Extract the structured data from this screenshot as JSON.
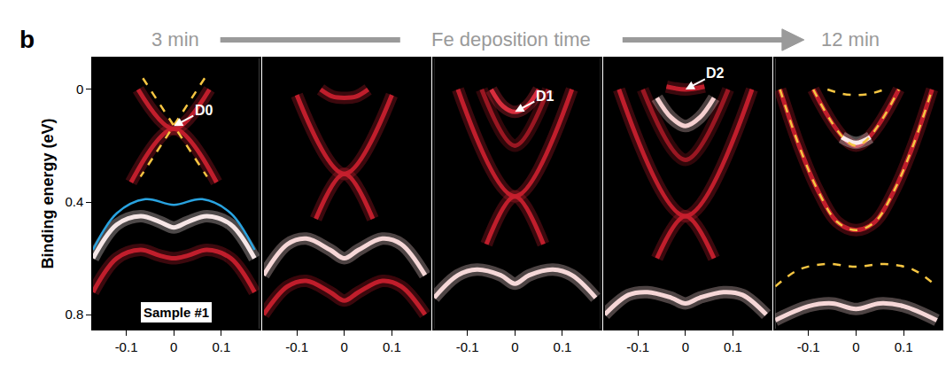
{
  "chart_data": {
    "type": "line",
    "label": "b",
    "header": {
      "left": "3 min",
      "center": "Fe deposition time",
      "right": "12 min"
    },
    "ylabel": "Binding energy (eV)",
    "color": "#000000",
    "xlim": [
      -0.17,
      0.18
    ],
    "ylim": [
      0.85,
      -0.11
    ],
    "xticks": [
      -0.1,
      0,
      0.1
    ],
    "yticks": [
      0,
      0.4,
      0.8
    ],
    "panels": [
      {
        "note": "Sample #1",
        "annotations": [
          {
            "text": "D0",
            "x": 0,
            "y": 0.13
          }
        ],
        "series": [
          {
            "type": "band",
            "color": "#c8202e",
            "line_style": "solid",
            "x": [
              -0.075,
              0,
              0.075
            ],
            "values": [
              0,
              0.14,
              0
            ]
          },
          {
            "type": "band",
            "color": "#c8202e",
            "line_style": "solid",
            "x": [
              -0.09,
              0,
              0.09
            ],
            "values": [
              0.33,
              0.14,
              0.33
            ]
          },
          {
            "type": "band",
            "color": "#c8202e",
            "line_style": "solid",
            "x": [
              -0.17,
              -0.12,
              -0.07,
              -0.03,
              0,
              0.03,
              0.07,
              0.12,
              0.17
            ],
            "values": [
              0.72,
              0.6,
              0.57,
              0.59,
              0.6,
              0.59,
              0.57,
              0.6,
              0.72
            ]
          },
          {
            "type": "band",
            "color": "#fff0f0",
            "line_style": "solid",
            "x": [
              -0.17,
              -0.12,
              -0.07,
              -0.03,
              0,
              0.03,
              0.07,
              0.12,
              0.17
            ],
            "values": [
              0.6,
              0.48,
              0.45,
              0.47,
              0.49,
              0.47,
              0.45,
              0.48,
              0.6
            ]
          },
          {
            "type": "line",
            "color": "#29a3e0",
            "line_style": "solid",
            "x": [
              -0.17,
              -0.12,
              -0.06,
              0,
              0.06,
              0.12,
              0.17
            ],
            "values": [
              0.57,
              0.44,
              0.39,
              0.41,
              0.39,
              0.44,
              0.57
            ]
          },
          {
            "type": "line",
            "color": "#f5c542",
            "line_style": "dash",
            "x": [
              -0.065,
              0.07
            ],
            "values": [
              -0.04,
              0.31
            ]
          },
          {
            "type": "line",
            "color": "#f5c542",
            "line_style": "dash",
            "x": [
              0.065,
              -0.07
            ],
            "values": [
              -0.04,
              0.31
            ]
          }
        ]
      },
      {
        "annotations": [],
        "series": [
          {
            "type": "band",
            "color": "#c8202e",
            "line_style": "solid",
            "x": [
              -0.1,
              0,
              0.1
            ],
            "values": [
              0.02,
              0.3,
              0.02
            ]
          },
          {
            "type": "band",
            "color": "#c8202e",
            "line_style": "solid",
            "x": [
              -0.06,
              0,
              0.06
            ],
            "values": [
              0.46,
              0.3,
              0.46
            ]
          },
          {
            "type": "band",
            "color": "#c8202e",
            "line_style": "solid",
            "x": [
              -0.05,
              -0.025,
              0,
              0.025,
              0.05
            ],
            "values": [
              0,
              0.025,
              0.03,
              0.025,
              0
            ]
          },
          {
            "type": "band",
            "color": "#c8202e",
            "line_style": "solid",
            "x": [
              -0.17,
              -0.12,
              -0.08,
              -0.03,
              0,
              0.03,
              0.08,
              0.12,
              0.17
            ],
            "values": [
              0.8,
              0.7,
              0.68,
              0.72,
              0.75,
              0.72,
              0.68,
              0.7,
              0.8
            ]
          },
          {
            "type": "band",
            "color": "#ffe0e0",
            "line_style": "solid",
            "x": [
              -0.17,
              -0.12,
              -0.08,
              -0.03,
              0,
              0.03,
              0.08,
              0.12,
              0.17
            ],
            "values": [
              0.66,
              0.55,
              0.53,
              0.57,
              0.6,
              0.57,
              0.53,
              0.55,
              0.66
            ]
          }
        ]
      },
      {
        "annotations": [
          {
            "text": "D1",
            "x": 0,
            "y": 0.08
          }
        ],
        "series": [
          {
            "type": "band",
            "color": "#c8202e",
            "line_style": "solid",
            "x": [
              -0.12,
              0,
              0.12
            ],
            "values": [
              0,
              0.38,
              0
            ]
          },
          {
            "type": "band",
            "color": "#c8202e",
            "line_style": "solid",
            "x": [
              -0.06,
              0,
              0.06
            ],
            "values": [
              0.55,
              0.38,
              0.55
            ]
          },
          {
            "type": "band",
            "color": "#a01824",
            "line_style": "solid",
            "x": [
              -0.07,
              0,
              0.07
            ],
            "values": [
              0,
              0.2,
              0
            ]
          },
          {
            "type": "band",
            "color": "#e03040",
            "line_style": "solid",
            "x": [
              -0.05,
              -0.025,
              0,
              0.025,
              0.05
            ],
            "values": [
              0,
              0.06,
              0.08,
              0.06,
              0
            ]
          },
          {
            "type": "band",
            "color": "#ffe0e0",
            "line_style": "solid",
            "x": [
              -0.17,
              -0.12,
              -0.08,
              -0.03,
              0,
              0.03,
              0.08,
              0.12,
              0.17
            ],
            "values": [
              0.74,
              0.66,
              0.64,
              0.66,
              0.69,
              0.66,
              0.64,
              0.66,
              0.74
            ]
          }
        ]
      },
      {
        "annotations": [
          {
            "text": "D2",
            "x": 0,
            "y": 0
          }
        ],
        "series": [
          {
            "type": "band",
            "color": "#c8202e",
            "line_style": "solid",
            "x": [
              -0.14,
              0,
              0.14
            ],
            "values": [
              0,
              0.45,
              0
            ]
          },
          {
            "type": "band",
            "color": "#c8202e",
            "line_style": "solid",
            "x": [
              -0.06,
              0,
              0.06
            ],
            "values": [
              0.6,
              0.45,
              0.6
            ]
          },
          {
            "type": "band",
            "color": "#a01824",
            "line_style": "solid",
            "x": [
              -0.09,
              0,
              0.09
            ],
            "values": [
              0,
              0.25,
              0
            ]
          },
          {
            "type": "band",
            "color": "#c8202e",
            "line_style": "solid",
            "x": [
              -0.04,
              0,
              0.04
            ],
            "values": [
              -0.01,
              0,
              -0.01
            ]
          },
          {
            "type": "band",
            "color": "#ffd8d8",
            "line_style": "solid",
            "x": [
              -0.06,
              -0.03,
              0,
              0.03,
              0.06
            ],
            "values": [
              0.03,
              0.1,
              0.13,
              0.1,
              0.03
            ]
          },
          {
            "type": "band",
            "color": "#ffe0e0",
            "line_style": "solid",
            "x": [
              -0.17,
              -0.12,
              -0.08,
              -0.03,
              0,
              0.03,
              0.08,
              0.12,
              0.17
            ],
            "values": [
              0.8,
              0.73,
              0.72,
              0.74,
              0.76,
              0.74,
              0.72,
              0.73,
              0.8
            ]
          }
        ]
      },
      {
        "annotations": [],
        "series": [
          {
            "type": "band",
            "color": "#c8202e",
            "line_style": "solid",
            "x": [
              -0.16,
              -0.12,
              -0.08,
              -0.04,
              0,
              0.04,
              0.08,
              0.12,
              0.16
            ],
            "values": [
              0,
              0.2,
              0.36,
              0.47,
              0.5,
              0.47,
              0.36,
              0.2,
              0
            ]
          },
          {
            "type": "band",
            "color": "#c8202e",
            "line_style": "solid",
            "x": [
              -0.09,
              0,
              0.09
            ],
            "values": [
              0,
              0.2,
              0
            ]
          },
          {
            "type": "band",
            "color": "#fff4f4",
            "line_style": "solid",
            "x": [
              -0.03,
              0,
              0.03
            ],
            "values": [
              0.17,
              0.19,
              0.17
            ]
          },
          {
            "type": "band",
            "color": "#ffe0e0",
            "line_style": "solid",
            "x": [
              -0.17,
              -0.1,
              -0.05,
              0,
              0.05,
              0.1,
              0.17
            ],
            "values": [
              0.82,
              0.77,
              0.76,
              0.78,
              0.76,
              0.77,
              0.82
            ]
          },
          {
            "type": "line",
            "color": "#f5c542",
            "line_style": "dash",
            "x": [
              -0.16,
              -0.12,
              -0.08,
              -0.04,
              0,
              0.04,
              0.08,
              0.12,
              0.16
            ],
            "values": [
              0,
              0.2,
              0.36,
              0.47,
              0.5,
              0.47,
              0.36,
              0.2,
              0
            ]
          },
          {
            "type": "line",
            "color": "#f5c542",
            "line_style": "dash",
            "x": [
              -0.09,
              0,
              0.09
            ],
            "values": [
              0,
              0.2,
              0
            ]
          },
          {
            "type": "line",
            "color": "#f5c542",
            "line_style": "dash",
            "x": [
              -0.06,
              -0.03,
              0,
              0.03,
              0.06
            ],
            "values": [
              0,
              0.015,
              0.02,
              0.015,
              0
            ]
          },
          {
            "type": "line",
            "color": "#f5c542",
            "line_style": "dash",
            "x": [
              -0.17,
              -0.12,
              -0.06,
              0,
              0.06,
              0.12,
              0.17
            ],
            "values": [
              0.7,
              0.64,
              0.62,
              0.63,
              0.62,
              0.64,
              0.7
            ]
          }
        ]
      }
    ]
  }
}
